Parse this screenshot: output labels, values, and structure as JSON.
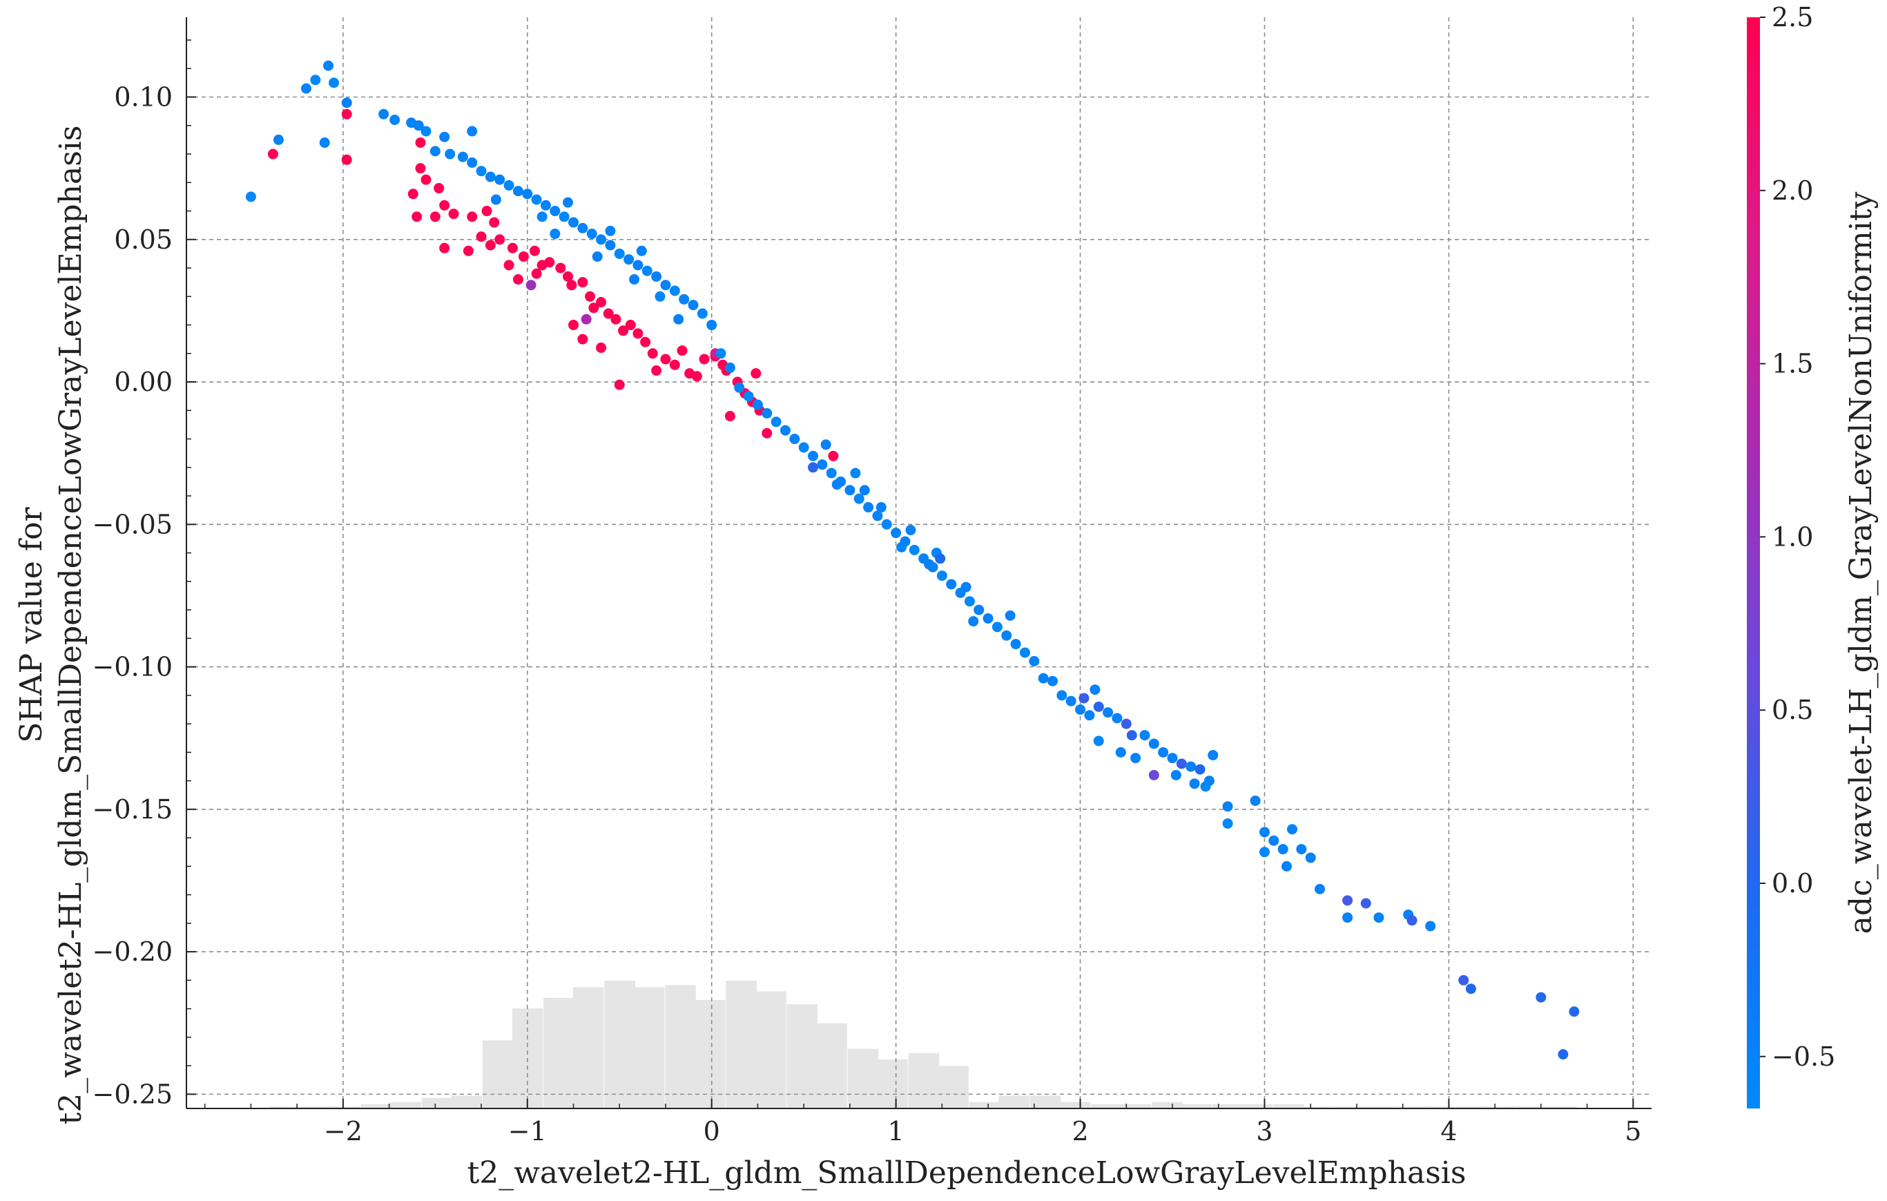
{
  "chart_data": {
    "type": "scatter",
    "xlabel": "t2_wavelet2-HL_gldm_SmallDependenceLowGrayLevelEmphasis",
    "ylabel_lines": [
      "SHAP value for",
      "t2_wavelet2-HL_gldm_SmallDependenceLowGrayLevelEmphasis"
    ],
    "xlim": [
      -2.85,
      5.1
    ],
    "ylim": [
      -0.255,
      0.128
    ],
    "x_ticks": [
      -2,
      -1,
      0,
      1,
      2,
      3,
      4,
      5
    ],
    "x_tick_labels": [
      "−2",
      "−1",
      "0",
      "1",
      "2",
      "3",
      "4",
      "5"
    ],
    "y_ticks": [
      0.1,
      0.05,
      0.0,
      -0.05,
      -0.1,
      -0.15,
      -0.2,
      -0.25
    ],
    "y_tick_labels": [
      "0.10",
      "0.05",
      "0.00",
      "−0.05",
      "−0.10",
      "−0.15",
      "−0.20",
      "−0.25"
    ],
    "grid": true,
    "grid_style": "dashed",
    "colorbar": {
      "label": "adc_wavelet-LH_gldm_GrayLevelNonUniformity",
      "range": [
        -0.65,
        2.5
      ],
      "ticks": [
        2.5,
        2.0,
        1.5,
        1.0,
        0.5,
        0.0,
        -0.5
      ],
      "tick_labels": [
        "2.5",
        "2.0",
        "1.5",
        "1.0",
        "0.5",
        "0.0",
        "−0.5"
      ],
      "colors": [
        "#008afb",
        "#1e6af0",
        "#6a49dc",
        "#a82bb4",
        "#dd1a88",
        "#ff0052"
      ]
    },
    "histogram": {
      "color": "#e5e5e5",
      "bin_width": 0.165,
      "bins": [
        {
          "x": -2.32,
          "count": 1
        },
        {
          "x": -2.15,
          "count": 1
        },
        {
          "x": -1.99,
          "count": 1
        },
        {
          "x": -1.82,
          "count": 2
        },
        {
          "x": -1.66,
          "count": 3
        },
        {
          "x": -1.49,
          "count": 5
        },
        {
          "x": -1.33,
          "count": 6
        },
        {
          "x": -1.16,
          "count": 32
        },
        {
          "x": -1.0,
          "count": 47
        },
        {
          "x": -0.83,
          "count": 52
        },
        {
          "x": -0.67,
          "count": 57
        },
        {
          "x": -0.5,
          "count": 60
        },
        {
          "x": -0.34,
          "count": 57
        },
        {
          "x": -0.17,
          "count": 58
        },
        {
          "x": -0.01,
          "count": 51
        },
        {
          "x": 0.16,
          "count": 60
        },
        {
          "x": 0.32,
          "count": 55
        },
        {
          "x": 0.49,
          "count": 49
        },
        {
          "x": 0.65,
          "count": 40
        },
        {
          "x": 0.82,
          "count": 28
        },
        {
          "x": 0.98,
          "count": 23
        },
        {
          "x": 1.15,
          "count": 26
        },
        {
          "x": 1.31,
          "count": 20
        },
        {
          "x": 1.48,
          "count": 3
        },
        {
          "x": 1.64,
          "count": 6
        },
        {
          "x": 1.81,
          "count": 6
        },
        {
          "x": 1.97,
          "count": 3
        },
        {
          "x": 2.14,
          "count": 2
        },
        {
          "x": 2.3,
          "count": 2
        },
        {
          "x": 2.47,
          "count": 3
        },
        {
          "x": 2.63,
          "count": 2
        },
        {
          "x": 2.8,
          "count": 2
        },
        {
          "x": 2.96,
          "count": 2
        },
        {
          "x": 3.13,
          "count": 2
        },
        {
          "x": 3.29,
          "count": 1
        },
        {
          "x": 3.46,
          "count": 1
        },
        {
          "x": 3.62,
          "count": 1
        },
        {
          "x": 3.79,
          "count": 1
        },
        {
          "x": 3.95,
          "count": 1
        },
        {
          "x": 4.12,
          "count": 1
        },
        {
          "x": 4.28,
          "count": 1
        },
        {
          "x": 4.45,
          "count": 1
        },
        {
          "x": 4.61,
          "count": 1
        }
      ]
    },
    "points": [
      [
        -2.5,
        0.065,
        -0.6
      ],
      [
        -2.38,
        0.08,
        2.5
      ],
      [
        -2.35,
        0.085,
        -0.5
      ],
      [
        -2.2,
        0.103,
        -0.5
      ],
      [
        -2.15,
        0.106,
        -0.6
      ],
      [
        -2.08,
        0.111,
        -0.5
      ],
      [
        -2.1,
        0.084,
        -0.5
      ],
      [
        -2.05,
        0.105,
        -0.6
      ],
      [
        -1.98,
        0.098,
        -0.5
      ],
      [
        -1.98,
        0.094,
        2.5
      ],
      [
        -1.98,
        0.078,
        2.5
      ],
      [
        -1.78,
        0.094,
        -0.5
      ],
      [
        -1.72,
        0.092,
        -0.6
      ],
      [
        -1.63,
        0.091,
        -0.5
      ],
      [
        -1.59,
        0.09,
        -0.5
      ],
      [
        -1.55,
        0.088,
        -0.6
      ],
      [
        -1.58,
        0.084,
        2.5
      ],
      [
        -1.45,
        0.086,
        -0.5
      ],
      [
        -1.3,
        0.088,
        -0.5
      ],
      [
        -1.5,
        0.081,
        -0.5
      ],
      [
        -1.42,
        0.08,
        -0.6
      ],
      [
        -1.35,
        0.079,
        -0.5
      ],
      [
        -1.3,
        0.077,
        -0.5
      ],
      [
        -1.25,
        0.074,
        -0.6
      ],
      [
        -1.2,
        0.072,
        -0.5
      ],
      [
        -1.15,
        0.071,
        -0.5
      ],
      [
        -1.1,
        0.069,
        -0.6
      ],
      [
        -1.05,
        0.067,
        -0.5
      ],
      [
        -1.0,
        0.066,
        -0.5
      ],
      [
        -0.95,
        0.064,
        -0.6
      ],
      [
        -0.9,
        0.062,
        -0.5
      ],
      [
        -0.85,
        0.06,
        -0.5
      ],
      [
        -0.8,
        0.058,
        -0.6
      ],
      [
        -0.75,
        0.056,
        -0.5
      ],
      [
        -0.7,
        0.054,
        -0.5
      ],
      [
        -0.65,
        0.052,
        -0.6
      ],
      [
        -0.6,
        0.05,
        -0.5
      ],
      [
        -0.55,
        0.048,
        -0.5
      ],
      [
        -0.5,
        0.045,
        -0.6
      ],
      [
        -0.45,
        0.043,
        -0.5
      ],
      [
        -0.4,
        0.041,
        -0.5
      ],
      [
        -0.35,
        0.039,
        -0.6
      ],
      [
        -0.3,
        0.037,
        -0.5
      ],
      [
        -0.25,
        0.034,
        -0.5
      ],
      [
        -0.2,
        0.032,
        -0.6
      ],
      [
        -0.15,
        0.029,
        -0.5
      ],
      [
        -0.1,
        0.027,
        -0.5
      ],
      [
        -0.05,
        0.024,
        -0.6
      ],
      [
        -0.78,
        0.063,
        -0.5
      ],
      [
        -0.92,
        0.058,
        -0.6
      ],
      [
        -0.55,
        0.053,
        -0.5
      ],
      [
        -0.38,
        0.046,
        -0.5
      ],
      [
        -0.28,
        0.03,
        -0.6
      ],
      [
        -0.18,
        0.022,
        -0.5
      ],
      [
        -1.17,
        0.064,
        -0.5
      ],
      [
        -0.85,
        0.052,
        -0.6
      ],
      [
        -0.62,
        0.044,
        -0.5
      ],
      [
        -0.42,
        0.036,
        -0.5
      ],
      [
        -1.58,
        0.075,
        2.5
      ],
      [
        -1.55,
        0.071,
        2.5
      ],
      [
        -1.48,
        0.068,
        2.5
      ],
      [
        -1.45,
        0.062,
        2.5
      ],
      [
        -1.62,
        0.066,
        2.5
      ],
      [
        -1.6,
        0.058,
        2.5
      ],
      [
        -1.5,
        0.058,
        2.5
      ],
      [
        -1.4,
        0.059,
        2.5
      ],
      [
        -1.3,
        0.058,
        2.5
      ],
      [
        -1.22,
        0.06,
        2.5
      ],
      [
        -1.18,
        0.056,
        2.5
      ],
      [
        -1.25,
        0.051,
        2.5
      ],
      [
        -1.2,
        0.048,
        2.5
      ],
      [
        -1.15,
        0.05,
        2.5
      ],
      [
        -1.45,
        0.047,
        2.5
      ],
      [
        -1.32,
        0.046,
        2.5
      ],
      [
        -1.08,
        0.047,
        2.5
      ],
      [
        -1.02,
        0.044,
        2.5
      ],
      [
        -0.96,
        0.046,
        2.5
      ],
      [
        -0.92,
        0.041,
        2.5
      ],
      [
        -0.88,
        0.042,
        2.5
      ],
      [
        -0.82,
        0.04,
        2.5
      ],
      [
        -0.78,
        0.037,
        2.5
      ],
      [
        -0.76,
        0.034,
        2.5
      ],
      [
        -0.7,
        0.035,
        2.5
      ],
      [
        -0.66,
        0.03,
        2.5
      ],
      [
        -0.64,
        0.026,
        2.5
      ],
      [
        -0.6,
        0.028,
        2.5
      ],
      [
        -0.56,
        0.024,
        2.5
      ],
      [
        -0.52,
        0.022,
        2.5
      ],
      [
        -0.48,
        0.018,
        2.5
      ],
      [
        -0.44,
        0.02,
        2.5
      ],
      [
        -0.4,
        0.017,
        2.5
      ],
      [
        -0.36,
        0.014,
        2.5
      ],
      [
        -0.32,
        0.01,
        2.5
      ],
      [
        -0.3,
        0.004,
        2.5
      ],
      [
        -0.25,
        0.008,
        2.5
      ],
      [
        -0.2,
        0.006,
        2.5
      ],
      [
        -0.16,
        0.011,
        2.5
      ],
      [
        -0.12,
        0.003,
        2.5
      ],
      [
        -0.08,
        0.002,
        2.5
      ],
      [
        -0.04,
        0.008,
        2.5
      ],
      [
        0.02,
        0.009,
        2.5
      ],
      [
        0.08,
        0.004,
        2.5
      ],
      [
        0.14,
        0.0,
        2.5
      ],
      [
        0.18,
        -0.004,
        2.5
      ],
      [
        0.24,
        0.003,
        2.5
      ],
      [
        0.22,
        -0.007,
        2.5
      ],
      [
        0.26,
        -0.01,
        2.5
      ],
      [
        0.1,
        -0.012,
        2.5
      ],
      [
        0.3,
        -0.018,
        2.5
      ],
      [
        0.06,
        0.006,
        2.5
      ],
      [
        -0.5,
        -0.001,
        2.5
      ],
      [
        -0.6,
        0.012,
        2.5
      ],
      [
        -0.7,
        0.015,
        2.5
      ],
      [
        -0.75,
        0.02,
        2.5
      ],
      [
        -0.95,
        0.038,
        2.5
      ],
      [
        -1.05,
        0.036,
        2.5
      ],
      [
        -1.1,
        0.041,
        2.5
      ],
      [
        -0.98,
        0.034,
        1.1
      ],
      [
        -0.68,
        0.022,
        1.3
      ],
      [
        0.02,
        0.01,
        1.8
      ],
      [
        0.0,
        0.02,
        -0.5
      ],
      [
        0.05,
        0.01,
        -0.6
      ],
      [
        0.1,
        0.005,
        -0.5
      ],
      [
        0.15,
        -0.002,
        -0.5
      ],
      [
        0.2,
        -0.005,
        -0.6
      ],
      [
        0.25,
        -0.008,
        -0.5
      ],
      [
        0.3,
        -0.011,
        -0.5
      ],
      [
        0.35,
        -0.014,
        -0.6
      ],
      [
        0.4,
        -0.017,
        -0.5
      ],
      [
        0.45,
        -0.02,
        -0.5
      ],
      [
        0.5,
        -0.023,
        -0.6
      ],
      [
        0.55,
        -0.026,
        -0.5
      ],
      [
        0.6,
        -0.029,
        -0.5
      ],
      [
        0.65,
        -0.032,
        -0.6
      ],
      [
        0.7,
        -0.035,
        -0.5
      ],
      [
        0.75,
        -0.038,
        -0.5
      ],
      [
        0.8,
        -0.041,
        -0.6
      ],
      [
        0.85,
        -0.044,
        -0.5
      ],
      [
        0.9,
        -0.047,
        -0.5
      ],
      [
        0.95,
        -0.05,
        -0.6
      ],
      [
        1.0,
        -0.053,
        -0.5
      ],
      [
        1.05,
        -0.056,
        -0.5
      ],
      [
        1.1,
        -0.059,
        -0.6
      ],
      [
        1.15,
        -0.062,
        -0.5
      ],
      [
        1.2,
        -0.065,
        -0.5
      ],
      [
        1.25,
        -0.068,
        -0.6
      ],
      [
        1.3,
        -0.071,
        -0.5
      ],
      [
        1.35,
        -0.074,
        -0.5
      ],
      [
        1.4,
        -0.077,
        -0.6
      ],
      [
        1.45,
        -0.08,
        -0.5
      ],
      [
        1.5,
        -0.083,
        -0.5
      ],
      [
        1.55,
        -0.086,
        -0.6
      ],
      [
        1.6,
        -0.089,
        -0.5
      ],
      [
        1.65,
        -0.092,
        -0.5
      ],
      [
        1.7,
        -0.095,
        -0.6
      ],
      [
        1.75,
        -0.098,
        -0.5
      ],
      [
        0.62,
        -0.022,
        -0.5
      ],
      [
        0.78,
        -0.032,
        -0.6
      ],
      [
        0.92,
        -0.044,
        -0.5
      ],
      [
        1.08,
        -0.052,
        -0.5
      ],
      [
        1.22,
        -0.06,
        -0.6
      ],
      [
        1.38,
        -0.072,
        -0.5
      ],
      [
        1.62,
        -0.082,
        -0.5
      ],
      [
        0.68,
        -0.036,
        -0.5
      ],
      [
        0.83,
        -0.038,
        -0.5
      ],
      [
        1.03,
        -0.058,
        -0.6
      ],
      [
        1.18,
        -0.064,
        -0.5
      ],
      [
        1.42,
        -0.084,
        -0.5
      ],
      [
        0.66,
        -0.026,
        2.5
      ],
      [
        0.55,
        -0.03,
        0.1
      ],
      [
        1.24,
        -0.062,
        0.0
      ],
      [
        1.8,
        -0.104,
        -0.5
      ],
      [
        1.85,
        -0.105,
        -0.5
      ],
      [
        1.9,
        -0.11,
        -0.6
      ],
      [
        1.95,
        -0.112,
        -0.5
      ],
      [
        2.0,
        -0.115,
        -0.5
      ],
      [
        2.02,
        -0.111,
        0.2
      ],
      [
        2.08,
        -0.108,
        -0.5
      ],
      [
        2.1,
        -0.114,
        0.1
      ],
      [
        2.05,
        -0.117,
        -0.5
      ],
      [
        2.15,
        -0.116,
        -0.5
      ],
      [
        2.2,
        -0.118,
        -0.5
      ],
      [
        2.25,
        -0.12,
        0.2
      ],
      [
        2.28,
        -0.124,
        0.1
      ],
      [
        2.35,
        -0.124,
        -0.5
      ],
      [
        2.4,
        -0.127,
        -0.5
      ],
      [
        2.45,
        -0.13,
        -0.5
      ],
      [
        2.5,
        -0.132,
        -0.5
      ],
      [
        2.55,
        -0.134,
        0.2
      ],
      [
        2.6,
        -0.135,
        -0.5
      ],
      [
        2.65,
        -0.136,
        0.0
      ],
      [
        2.7,
        -0.14,
        -0.5
      ],
      [
        2.72,
        -0.131,
        -0.5
      ],
      [
        2.22,
        -0.13,
        -0.5
      ],
      [
        2.3,
        -0.132,
        -0.5
      ],
      [
        2.52,
        -0.138,
        -0.5
      ],
      [
        2.68,
        -0.142,
        -0.6
      ],
      [
        2.1,
        -0.126,
        -0.6
      ],
      [
        2.4,
        -0.138,
        0.6
      ],
      [
        2.62,
        -0.141,
        -0.5
      ],
      [
        2.8,
        -0.149,
        -0.5
      ],
      [
        2.95,
        -0.147,
        -0.5
      ],
      [
        2.8,
        -0.155,
        -0.6
      ],
      [
        3.0,
        -0.158,
        -0.5
      ],
      [
        3.05,
        -0.161,
        -0.5
      ],
      [
        3.1,
        -0.164,
        -0.5
      ],
      [
        3.15,
        -0.157,
        -0.5
      ],
      [
        3.2,
        -0.164,
        -0.5
      ],
      [
        3.0,
        -0.165,
        -0.6
      ],
      [
        3.12,
        -0.17,
        -0.5
      ],
      [
        3.25,
        -0.167,
        -0.5
      ],
      [
        3.3,
        -0.178,
        -0.5
      ],
      [
        3.45,
        -0.182,
        0.3
      ],
      [
        3.55,
        -0.183,
        0.2
      ],
      [
        3.45,
        -0.188,
        -0.5
      ],
      [
        3.62,
        -0.188,
        -0.5
      ],
      [
        3.78,
        -0.187,
        -0.5
      ],
      [
        3.8,
        -0.189,
        0.2
      ],
      [
        3.9,
        -0.191,
        -0.5
      ],
      [
        4.08,
        -0.21,
        0.2
      ],
      [
        4.12,
        -0.213,
        0.0
      ],
      [
        4.5,
        -0.216,
        0.0
      ],
      [
        4.68,
        -0.221,
        0.0
      ],
      [
        4.62,
        -0.236,
        0.0
      ]
    ]
  }
}
